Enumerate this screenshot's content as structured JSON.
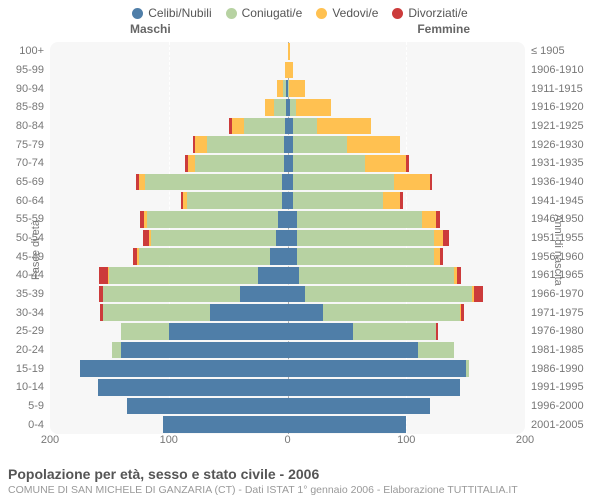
{
  "legend": [
    {
      "label": "Celibi/Nubili",
      "color": "#4f7ea8"
    },
    {
      "label": "Coniugati/e",
      "color": "#b7d2a2"
    },
    {
      "label": "Vedovi/e",
      "color": "#ffc151"
    },
    {
      "label": "Divorziati/e",
      "color": "#cc3b3b"
    }
  ],
  "headers": {
    "male": "Maschi",
    "female": "Femmine"
  },
  "axis": {
    "left_title": "Fasce di età",
    "right_title": "Anni di nascita",
    "xmax": 200,
    "xticks": [
      200,
      100,
      0,
      100,
      200
    ]
  },
  "colors": {
    "single": "#4f7ea8",
    "married": "#b7d2a2",
    "widowed": "#ffc151",
    "divorced": "#cc3b3b",
    "plot_bg": "#f7f7f7",
    "grid": "#ffffff"
  },
  "rows": [
    {
      "age": "100+",
      "birth": "≤ 1905",
      "m": {
        "s": 0,
        "c": 0,
        "w": 0,
        "d": 0
      },
      "f": {
        "s": 0,
        "c": 0,
        "w": 2,
        "d": 0
      }
    },
    {
      "age": "95-99",
      "birth": "1906-1910",
      "m": {
        "s": 0,
        "c": 0,
        "w": 2,
        "d": 0
      },
      "f": {
        "s": 0,
        "c": 0,
        "w": 5,
        "d": 0
      }
    },
    {
      "age": "90-94",
      "birth": "1911-1915",
      "m": {
        "s": 1,
        "c": 3,
        "w": 5,
        "d": 0
      },
      "f": {
        "s": 0,
        "c": 1,
        "w": 14,
        "d": 0
      }
    },
    {
      "age": "85-89",
      "birth": "1916-1920",
      "m": {
        "s": 1,
        "c": 10,
        "w": 8,
        "d": 0
      },
      "f": {
        "s": 2,
        "c": 5,
        "w": 30,
        "d": 0
      }
    },
    {
      "age": "80-84",
      "birth": "1921-1925",
      "m": {
        "s": 2,
        "c": 35,
        "w": 10,
        "d": 2
      },
      "f": {
        "s": 5,
        "c": 20,
        "w": 45,
        "d": 0
      }
    },
    {
      "age": "75-79",
      "birth": "1926-1930",
      "m": {
        "s": 3,
        "c": 65,
        "w": 10,
        "d": 2
      },
      "f": {
        "s": 5,
        "c": 45,
        "w": 45,
        "d": 0
      }
    },
    {
      "age": "70-74",
      "birth": "1931-1935",
      "m": {
        "s": 3,
        "c": 75,
        "w": 6,
        "d": 2
      },
      "f": {
        "s": 5,
        "c": 60,
        "w": 35,
        "d": 2
      }
    },
    {
      "age": "65-69",
      "birth": "1936-1940",
      "m": {
        "s": 5,
        "c": 115,
        "w": 5,
        "d": 3
      },
      "f": {
        "s": 5,
        "c": 85,
        "w": 30,
        "d": 2
      }
    },
    {
      "age": "60-64",
      "birth": "1941-1945",
      "m": {
        "s": 5,
        "c": 80,
        "w": 3,
        "d": 2
      },
      "f": {
        "s": 5,
        "c": 75,
        "w": 15,
        "d": 2
      }
    },
    {
      "age": "55-59",
      "birth": "1946-1950",
      "m": {
        "s": 8,
        "c": 110,
        "w": 3,
        "d": 3
      },
      "f": {
        "s": 8,
        "c": 105,
        "w": 12,
        "d": 3
      }
    },
    {
      "age": "50-54",
      "birth": "1951-1955",
      "m": {
        "s": 10,
        "c": 105,
        "w": 2,
        "d": 5
      },
      "f": {
        "s": 8,
        "c": 115,
        "w": 8,
        "d": 5
      }
    },
    {
      "age": "45-49",
      "birth": "1956-1960",
      "m": {
        "s": 15,
        "c": 110,
        "w": 2,
        "d": 3
      },
      "f": {
        "s": 8,
        "c": 115,
        "w": 5,
        "d": 3
      }
    },
    {
      "age": "40-44",
      "birth": "1961-1965",
      "m": {
        "s": 25,
        "c": 125,
        "w": 1,
        "d": 8
      },
      "f": {
        "s": 10,
        "c": 130,
        "w": 3,
        "d": 3
      }
    },
    {
      "age": "35-39",
      "birth": "1966-1970",
      "m": {
        "s": 40,
        "c": 115,
        "w": 0,
        "d": 4
      },
      "f": {
        "s": 15,
        "c": 140,
        "w": 2,
        "d": 8
      }
    },
    {
      "age": "30-34",
      "birth": "1971-1975",
      "m": {
        "s": 65,
        "c": 90,
        "w": 0,
        "d": 3
      },
      "f": {
        "s": 30,
        "c": 115,
        "w": 1,
        "d": 3
      }
    },
    {
      "age": "25-29",
      "birth": "1976-1980",
      "m": {
        "s": 100,
        "c": 40,
        "w": 0,
        "d": 0
      },
      "f": {
        "s": 55,
        "c": 70,
        "w": 0,
        "d": 2
      }
    },
    {
      "age": "20-24",
      "birth": "1981-1985",
      "m": {
        "s": 140,
        "c": 8,
        "w": 0,
        "d": 0
      },
      "f": {
        "s": 110,
        "c": 30,
        "w": 0,
        "d": 0
      }
    },
    {
      "age": "15-19",
      "birth": "1986-1990",
      "m": {
        "s": 175,
        "c": 0,
        "w": 0,
        "d": 0
      },
      "f": {
        "s": 150,
        "c": 3,
        "w": 0,
        "d": 0
      }
    },
    {
      "age": "10-14",
      "birth": "1991-1995",
      "m": {
        "s": 160,
        "c": 0,
        "w": 0,
        "d": 0
      },
      "f": {
        "s": 145,
        "c": 0,
        "w": 0,
        "d": 0
      }
    },
    {
      "age": "5-9",
      "birth": "1996-2000",
      "m": {
        "s": 135,
        "c": 0,
        "w": 0,
        "d": 0
      },
      "f": {
        "s": 120,
        "c": 0,
        "w": 0,
        "d": 0
      }
    },
    {
      "age": "0-4",
      "birth": "2001-2005",
      "m": {
        "s": 105,
        "c": 0,
        "w": 0,
        "d": 0
      },
      "f": {
        "s": 100,
        "c": 0,
        "w": 0,
        "d": 0
      }
    }
  ],
  "footer": {
    "title": "Popolazione per età, sesso e stato civile - 2006",
    "subtitle": "COMUNE DI SAN MICHELE DI GANZARIA (CT) - Dati ISTAT 1° gennaio 2006 - Elaborazione TUTTITALIA.IT"
  }
}
